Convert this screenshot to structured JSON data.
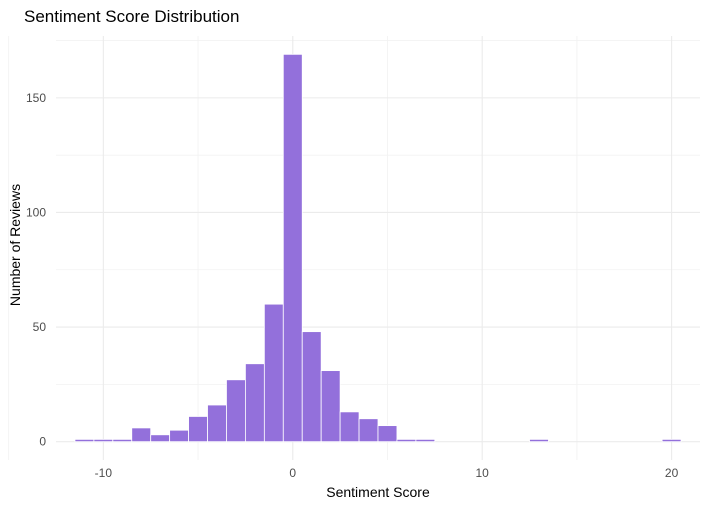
{
  "chart_data": {
    "type": "bar",
    "subtype": "histogram",
    "title": "Sentiment Score Distribution",
    "xlabel": "Sentiment Score",
    "ylabel": "Number of Reviews",
    "xlim": [
      -12.5,
      21.5
    ],
    "ylim": [
      -8,
      177
    ],
    "x_ticks": [
      -10,
      0,
      10,
      20
    ],
    "y_ticks": [
      0,
      50,
      100,
      150
    ],
    "grid": true,
    "bin_width": 1,
    "bar_color": "#9370DB",
    "bins": [
      {
        "x": -11,
        "count": 1
      },
      {
        "x": -10,
        "count": 1
      },
      {
        "x": -9,
        "count": 1
      },
      {
        "x": -8,
        "count": 6
      },
      {
        "x": -7,
        "count": 3
      },
      {
        "x": -6,
        "count": 5
      },
      {
        "x": -5,
        "count": 11
      },
      {
        "x": -4,
        "count": 16
      },
      {
        "x": -3,
        "count": 27
      },
      {
        "x": -2,
        "count": 34
      },
      {
        "x": -1,
        "count": 60
      },
      {
        "x": 0,
        "count": 169
      },
      {
        "x": 1,
        "count": 48
      },
      {
        "x": 2,
        "count": 31
      },
      {
        "x": 3,
        "count": 13
      },
      {
        "x": 4,
        "count": 10
      },
      {
        "x": 5,
        "count": 7
      },
      {
        "x": 6,
        "count": 1
      },
      {
        "x": 7,
        "count": 1
      },
      {
        "x": 13,
        "count": 1
      },
      {
        "x": 20,
        "count": 1
      }
    ]
  }
}
